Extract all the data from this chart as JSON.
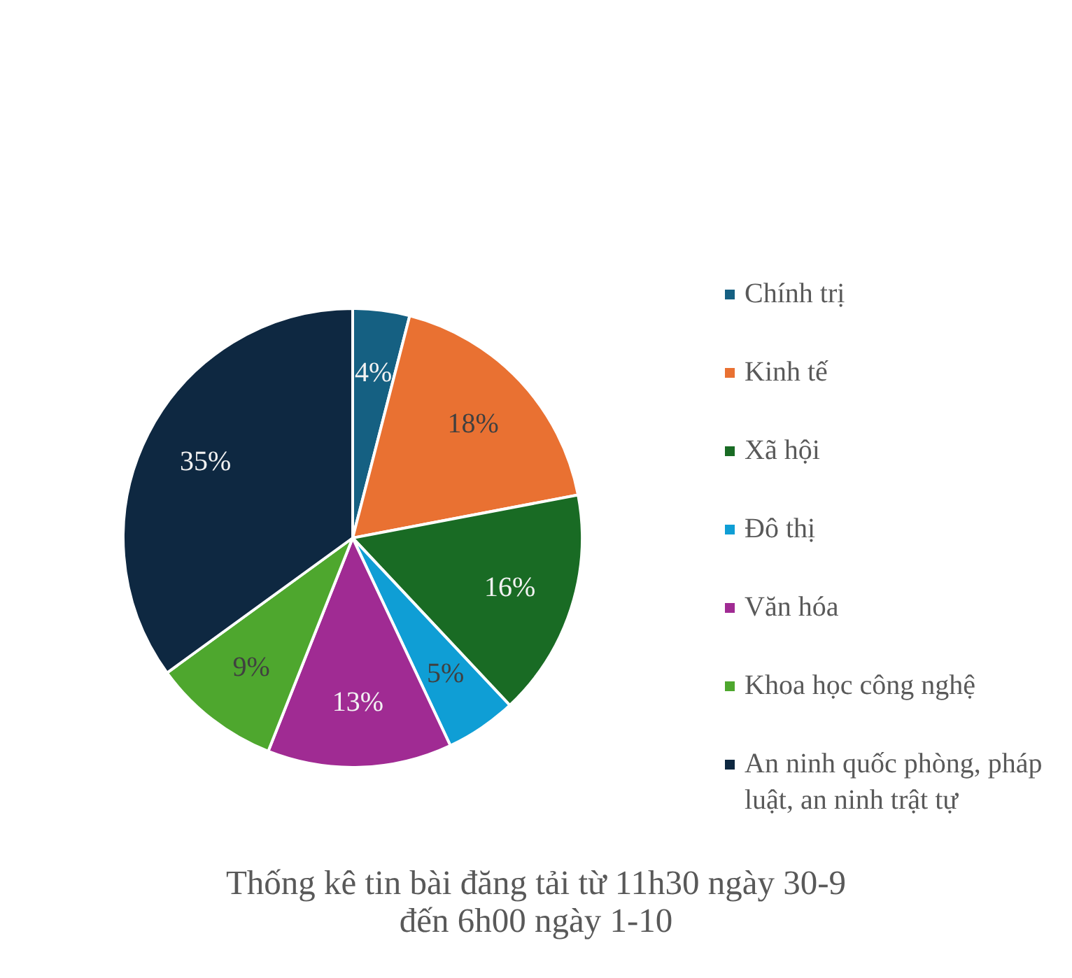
{
  "chart_data": {
    "type": "pie",
    "title": "Thống kê tin bài đăng tải từ 11h30 ngày 30-9 đến 6h00 ngày 1-10",
    "categories": [
      "Chính trị",
      "Kinh tế",
      "Xã hội",
      "Đô thị",
      "Văn hóa",
      "Khoa học công nghệ",
      "An ninh quốc phòng, pháp luật, an ninh trật tự"
    ],
    "values": [
      4,
      18,
      16,
      5,
      13,
      9,
      35
    ],
    "colors": [
      "#156082",
      "#e97132",
      "#196b24",
      "#0f9ed5",
      "#a02b93",
      "#4ea72e",
      "#0e2841"
    ],
    "value_labels": [
      "4%",
      "18%",
      "16%",
      "5%",
      "13%",
      "9%",
      "35%"
    ],
    "legend": "right"
  }
}
